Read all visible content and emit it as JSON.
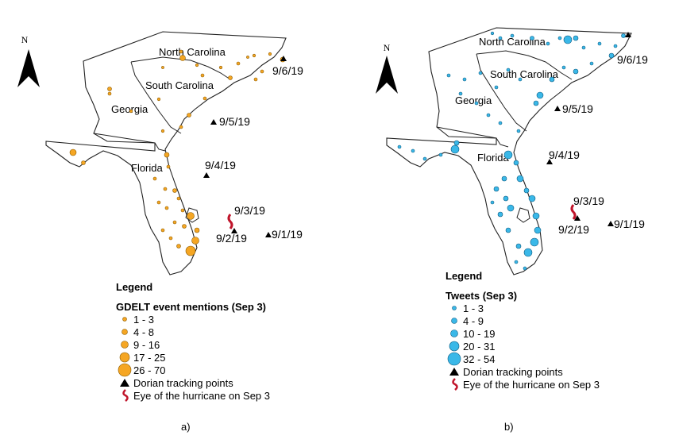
{
  "panels": [
    {
      "id": "a",
      "north": "N",
      "states": [
        "North Carolina",
        "South Carolina",
        "Georgia",
        "Florida"
      ],
      "dates": [
        "9/6/19",
        "9/5/19",
        "9/4/19",
        "9/3/19",
        "9/2/19",
        "9/1/19"
      ],
      "legend": {
        "title": "Legend",
        "subtitle": "GDELT event mentions (Sep 3)",
        "classes": [
          "1 - 3",
          "4 - 8",
          "9 - 16",
          "17 - 25",
          "26 - 70"
        ],
        "track": "Dorian tracking points",
        "eye": "Eye of the hurricane on Sep 3"
      },
      "color": "#f5a623",
      "caption": "a)"
    },
    {
      "id": "b",
      "north": "N",
      "states": [
        "North Carolina",
        "South Carolina",
        "Georgia",
        "Florida"
      ],
      "dates": [
        "9/6/19",
        "9/5/19",
        "9/4/19",
        "9/3/19",
        "9/2/19",
        "9/1/19"
      ],
      "legend": {
        "title": "Legend",
        "subtitle": "Tweets (Sep 3)",
        "classes": [
          "1 - 3",
          "4 - 9",
          "10 - 19",
          "20 - 31",
          "32 - 54"
        ],
        "track": "Dorian tracking points",
        "eye": "Eye of the hurricane on Sep 3"
      },
      "color": "#3ab8e8",
      "caption": "b)"
    }
  ]
}
